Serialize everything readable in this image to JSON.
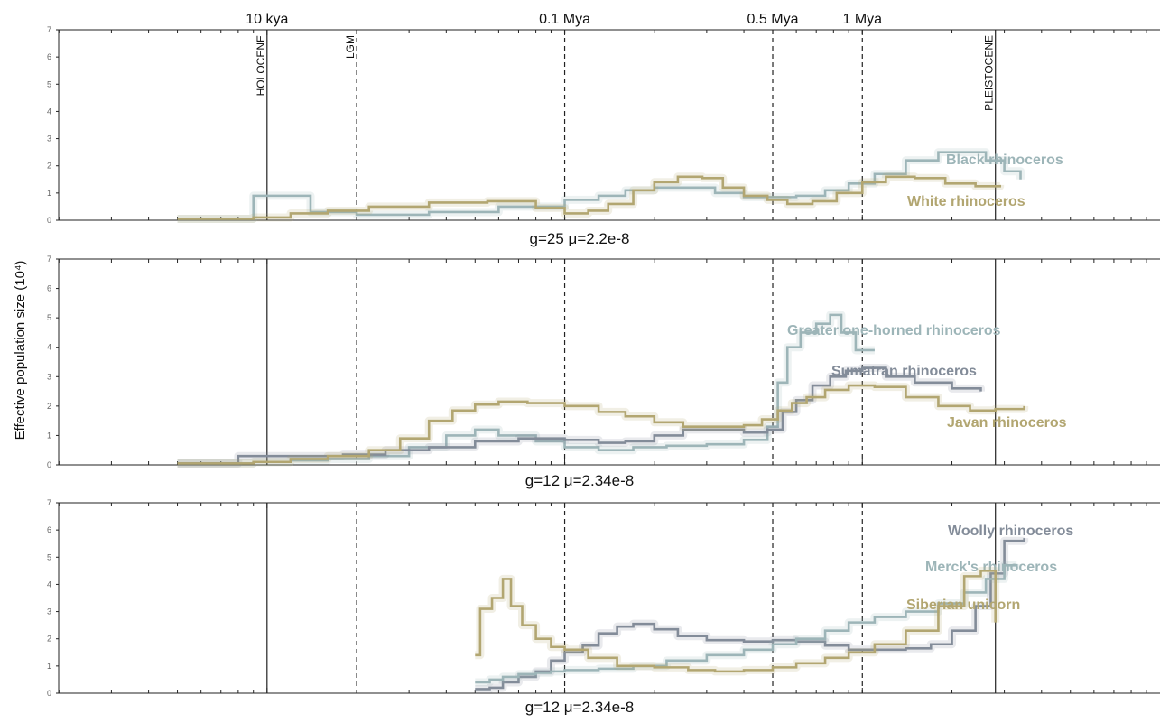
{
  "chart_data": {
    "type": "line",
    "x_scale": "log",
    "ylabel": "Effective population size (10⁴)",
    "top_axis_labels": [
      {
        "label": "10 kya",
        "x": 10000
      },
      {
        "label": "0.1 Mya",
        "x": 100000
      },
      {
        "label": "0.5 Mya",
        "x": 500000
      },
      {
        "label": "1 Mya",
        "x": 1000000
      }
    ],
    "vlines": [
      {
        "x": 10000,
        "style": "solid",
        "label": "HOLOCENE"
      },
      {
        "x": 20000,
        "style": "dashed",
        "label": "LGM"
      },
      {
        "x": 100000,
        "style": "dashed",
        "label": ""
      },
      {
        "x": 500000,
        "style": "dashed",
        "label": ""
      },
      {
        "x": 1000000,
        "style": "dashed",
        "label": ""
      },
      {
        "x": 2800000,
        "style": "solid",
        "label": "PLEISTOCENE"
      }
    ],
    "panels": [
      {
        "param_label": "g=25 μ=2.2e-8",
        "ylim": [
          0,
          7
        ],
        "yticks": [
          0,
          1,
          2,
          3,
          4,
          5,
          6,
          7
        ],
        "series": [
          {
            "name": "Black rhinoceros",
            "color": "#9db5b8",
            "x": [
              5000,
              9000,
              10000,
              12000,
              14000,
              20000,
              35000,
              60000,
              100000,
              130000,
              160000,
              200000,
              250000,
              320000,
              400000,
              500000,
              600000,
              750000,
              900000,
              1100000,
              1400000,
              1800000,
              2200000,
              2600000,
              3000000,
              3400000
            ],
            "y": [
              0.05,
              0.9,
              0.9,
              0.9,
              0.3,
              0.2,
              0.3,
              0.5,
              0.75,
              0.9,
              1.1,
              1.2,
              1.2,
              1.0,
              0.85,
              0.85,
              0.9,
              1.1,
              1.35,
              1.7,
              2.2,
              2.5,
              2.5,
              2.2,
              1.8,
              1.5
            ]
          },
          {
            "name": "White rhinoceros",
            "color": "#b2a671",
            "x": [
              5000,
              9000,
              12000,
              16000,
              22000,
              35000,
              55000,
              80000,
              100000,
              120000,
              140000,
              170000,
              200000,
              240000,
              290000,
              340000,
              400000,
              480000,
              560000,
              680000,
              820000,
              1000000,
              1200000,
              1500000,
              1900000,
              2400000,
              2900000
            ],
            "y": [
              0.05,
              0.1,
              0.25,
              0.35,
              0.5,
              0.65,
              0.7,
              0.45,
              0.25,
              0.35,
              0.6,
              1.1,
              1.4,
              1.6,
              1.55,
              1.2,
              0.9,
              0.75,
              0.6,
              0.7,
              1.0,
              1.4,
              1.6,
              1.55,
              1.35,
              1.25,
              1.3
            ]
          }
        ]
      },
      {
        "param_label": "g=12 μ=2.34e-8",
        "ylim": [
          0,
          7
        ],
        "yticks": [
          0,
          1,
          2,
          3,
          4,
          5,
          6,
          7
        ],
        "series": [
          {
            "name": "Greater one-horned rhinoceros",
            "color": "#9db5b8",
            "x": [
              5000,
              9000,
              12000,
              16000,
              22000,
              30000,
              40000,
              50000,
              60000,
              80000,
              100000,
              130000,
              170000,
              220000,
              300000,
              400000,
              480000,
              520000,
              560000,
              620000,
              700000,
              780000,
              850000,
              950000,
              1100000
            ],
            "y": [
              0.05,
              0.1,
              0.15,
              0.2,
              0.3,
              0.6,
              1.0,
              1.2,
              1.0,
              0.8,
              0.6,
              0.5,
              0.6,
              0.65,
              0.7,
              0.85,
              1.3,
              2.8,
              4.0,
              4.5,
              4.8,
              5.1,
              4.5,
              3.9,
              3.9
            ]
          },
          {
            "name": "Sumatran rhinoceros",
            "color": "#838c99",
            "x": [
              5000,
              8000,
              12000,
              18000,
              25000,
              35000,
              50000,
              70000,
              100000,
              130000,
              160000,
              200000,
              250000,
              320000,
              400000,
              480000,
              540000,
              600000,
              680000,
              780000,
              880000,
              1000000,
              1200000,
              1500000,
              2000000,
              2500000
            ],
            "y": [
              0.05,
              0.3,
              0.3,
              0.35,
              0.5,
              0.6,
              0.8,
              0.9,
              0.85,
              0.75,
              0.8,
              1.0,
              1.2,
              1.2,
              1.1,
              1.2,
              1.8,
              2.2,
              2.7,
              3.0,
              3.2,
              3.3,
              3.0,
              2.8,
              2.6,
              2.5
            ]
          },
          {
            "name": "Javan rhinoceros",
            "color": "#b2a671",
            "x": [
              5000,
              9000,
              12000,
              16000,
              22000,
              28000,
              35000,
              42000,
              50000,
              60000,
              75000,
              100000,
              130000,
              160000,
              200000,
              250000,
              320000,
              400000,
              460000,
              520000,
              580000,
              650000,
              750000,
              900000,
              1100000,
              1400000,
              1800000,
              2300000,
              2800000,
              3500000
            ],
            "y": [
              0.05,
              0.1,
              0.2,
              0.3,
              0.5,
              0.9,
              1.5,
              1.85,
              2.05,
              2.15,
              2.1,
              2.0,
              1.8,
              1.65,
              1.45,
              1.3,
              1.3,
              1.35,
              1.55,
              1.85,
              2.1,
              2.3,
              2.55,
              2.7,
              2.65,
              2.3,
              2.0,
              1.85,
              1.9,
              2.0
            ]
          }
        ]
      },
      {
        "param_label": "g=12 μ=2.34e-8",
        "ylim": [
          0,
          7
        ],
        "yticks": [
          0,
          1,
          2,
          3,
          4,
          5,
          6,
          7
        ],
        "series": [
          {
            "name": "Woolly rhinoceros",
            "color": "#838c99",
            "x": [
              50000,
              56000,
              62000,
              70000,
              80000,
              90000,
              100000,
              115000,
              130000,
              150000,
              170000,
              200000,
              240000,
              300000,
              400000,
              500000,
              600000,
              750000,
              900000,
              1100000,
              1400000,
              1700000,
              2000000,
              2400000,
              2700000,
              3000000,
              3500000
            ],
            "y": [
              0.15,
              0.2,
              0.4,
              0.6,
              0.8,
              1.2,
              1.5,
              1.75,
              2.2,
              2.45,
              2.55,
              2.35,
              2.1,
              1.95,
              1.9,
              1.95,
              1.9,
              1.75,
              1.6,
              1.6,
              1.65,
              1.8,
              2.3,
              3.2,
              4.4,
              5.6,
              5.7
            ]
          },
          {
            "name": "Merck's rhinoceros",
            "color": "#9db5b8",
            "x": [
              50000,
              56000,
              62000,
              70000,
              80000,
              90000,
              100000,
              130000,
              170000,
              220000,
              300000,
              400000,
              500000,
              600000,
              750000,
              900000,
              1100000,
              1400000,
              1800000,
              2200000,
              2600000,
              3000000,
              3300000
            ],
            "y": [
              0.4,
              0.5,
              0.6,
              0.7,
              0.75,
              0.8,
              0.85,
              0.9,
              1.0,
              1.2,
              1.4,
              1.6,
              1.8,
              2.0,
              2.3,
              2.6,
              2.8,
              3.0,
              3.3,
              3.7,
              4.2,
              4.7,
              4.75
            ]
          },
          {
            "name": "Siberian unicorn",
            "color": "#b2a671",
            "x": [
              50000,
              52000,
              57000,
              62000,
              66000,
              72000,
              80000,
              90000,
              100000,
              120000,
              150000,
              200000,
              260000,
              320000,
              400000,
              500000,
              600000,
              750000,
              900000,
              1100000,
              1400000,
              1800000,
              2200000,
              2500000,
              2800000
            ],
            "y": [
              1.4,
              3.1,
              3.5,
              4.2,
              3.2,
              2.5,
              2.0,
              1.7,
              1.6,
              1.3,
              1.0,
              0.95,
              0.85,
              0.8,
              0.85,
              0.95,
              1.1,
              1.3,
              1.5,
              1.8,
              2.3,
              3.2,
              4.3,
              4.5,
              2.6
            ]
          }
        ]
      }
    ]
  }
}
